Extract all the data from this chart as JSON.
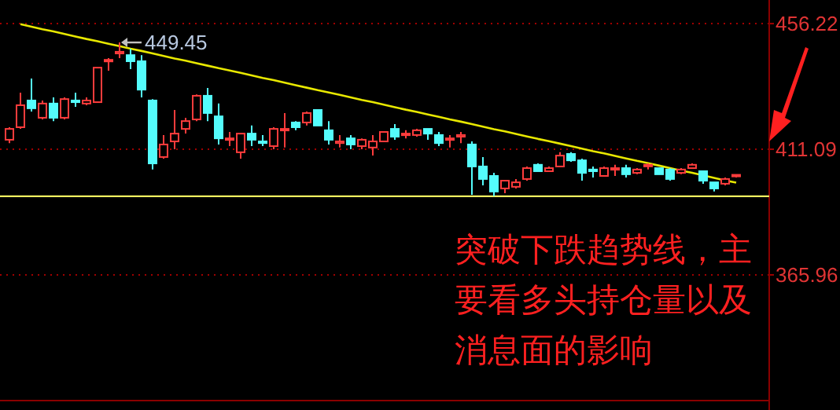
{
  "chart_data": {
    "type": "candlestick",
    "categories": [
      null,
      null,
      null,
      null,
      null,
      null,
      null,
      null,
      null,
      null,
      null,
      null,
      null,
      null,
      null,
      null,
      null,
      null,
      null,
      null,
      null,
      null,
      null,
      null,
      null,
      null,
      null,
      null,
      null,
      null,
      null,
      null,
      null,
      null,
      null,
      null,
      null,
      null,
      null,
      null,
      null,
      null,
      null,
      null,
      null,
      null,
      null,
      null,
      null,
      null,
      null,
      null,
      null,
      null,
      null,
      null,
      null,
      null,
      null,
      null,
      null,
      null,
      null,
      null,
      null,
      null,
      null
    ],
    "ohlc": [
      [
        414.5,
        419.0,
        413.3,
        418.4
      ],
      [
        419.0,
        431.4,
        418.4,
        426.9
      ],
      [
        428.6,
        436.5,
        424.6,
        425.8
      ],
      [
        422.4,
        428.6,
        421.8,
        427.5
      ],
      [
        427.5,
        429.7,
        421.2,
        422.4
      ],
      [
        422.4,
        429.7,
        421.8,
        429.1
      ],
      [
        428.6,
        431.4,
        426.3,
        428.0
      ],
      [
        427.5,
        429.7,
        426.9,
        428.6
      ],
      [
        428.0,
        440.4,
        428.0,
        440.4
      ],
      [
        442.7,
        443.8,
        439.3,
        443.2
      ],
      [
        445.5,
        449.45,
        443.8,
        446.1
      ],
      [
        444.9,
        447.2,
        439.9,
        442.7
      ],
      [
        442.7,
        444.9,
        429.7,
        432.5
      ],
      [
        428.6,
        429.1,
        403.8,
        406.0
      ],
      [
        408.3,
        416.2,
        407.7,
        412.8
      ],
      [
        413.9,
        425.2,
        411.1,
        416.7
      ],
      [
        418.4,
        422.4,
        416.7,
        421.2
      ],
      [
        421.8,
        430.8,
        421.2,
        430.3
      ],
      [
        430.3,
        433.1,
        421.2,
        424.1
      ],
      [
        422.9,
        427.5,
        412.8,
        415.0
      ],
      [
        414.5,
        417.3,
        412.2,
        415.0
      ],
      [
        410.0,
        416.7,
        407.7,
        416.7
      ],
      [
        416.7,
        419.6,
        412.2,
        414.5
      ],
      [
        413.9,
        416.2,
        412.2,
        413.3
      ],
      [
        412.2,
        419.0,
        411.1,
        418.4
      ],
      [
        417.9,
        424.1,
        411.7,
        418.4
      ],
      [
        420.7,
        421.2,
        417.9,
        419.0
      ],
      [
        420.7,
        424.6,
        419.6,
        424.1
      ],
      [
        425.2,
        425.2,
        419.6,
        419.6
      ],
      [
        417.9,
        421.2,
        412.8,
        414.5
      ],
      [
        413.3,
        416.2,
        411.7,
        413.9
      ],
      [
        415.0,
        416.2,
        411.1,
        412.8
      ],
      [
        412.2,
        415.0,
        411.1,
        414.5
      ],
      [
        411.7,
        416.2,
        408.8,
        413.9
      ],
      [
        413.9,
        417.3,
        413.9,
        417.3
      ],
      [
        418.4,
        420.1,
        414.5,
        415.6
      ],
      [
        416.2,
        417.9,
        415.0,
        416.7
      ],
      [
        416.2,
        418.4,
        415.6,
        417.9
      ],
      [
        418.4,
        418.4,
        414.5,
        416.7
      ],
      [
        416.2,
        417.3,
        412.2,
        413.3
      ],
      [
        414.5,
        416.2,
        411.7,
        415.0
      ],
      [
        415.6,
        417.3,
        413.3,
        416.2
      ],
      [
        412.8,
        413.9,
        394.7,
        404.9
      ],
      [
        404.9,
        408.3,
        398.1,
        400.4
      ],
      [
        401.5,
        402.6,
        394.2,
        395.9
      ],
      [
        397.0,
        399.8,
        395.3,
        399.8
      ],
      [
        397.6,
        400.4,
        397.0,
        399.2
      ],
      [
        400.4,
        404.9,
        399.8,
        404.3
      ],
      [
        405.5,
        406.0,
        403.2,
        403.2
      ],
      [
        403.2,
        404.9,
        403.2,
        404.3
      ],
      [
        404.9,
        410.0,
        404.9,
        408.8
      ],
      [
        409.4,
        410.0,
        406.6,
        407.1
      ],
      [
        407.1,
        407.7,
        399.8,
        402.6
      ],
      [
        403.8,
        404.9,
        400.9,
        403.2
      ],
      [
        401.5,
        404.9,
        401.5,
        404.3
      ],
      [
        403.8,
        405.5,
        401.5,
        404.3
      ],
      [
        404.3,
        405.5,
        400.9,
        402.1
      ],
      [
        402.6,
        404.3,
        402.1,
        403.8
      ],
      [
        405.0,
        406.0,
        403.8,
        405.5
      ],
      [
        404.3,
        404.3,
        402.1,
        402.1
      ],
      [
        403.8,
        404.3,
        399.8,
        400.4
      ],
      [
        402.6,
        404.3,
        402.1,
        403.8
      ],
      [
        404.3,
        406.0,
        404.3,
        405.5
      ],
      [
        403.2,
        403.2,
        398.7,
        399.8
      ],
      [
        399.2,
        399.2,
        395.9,
        397.0
      ],
      [
        398.7,
        400.9,
        398.1,
        400.4
      ],
      [
        401.5,
        401.9,
        400.9,
        401.9
      ]
    ],
    "colors": [
      "#ff3c3c",
      "#ff3c3c",
      "#54fcfc",
      "#ff3c3c",
      "#54fcfc",
      "#ff3c3c",
      "#54fcfc",
      "#ff3c3c",
      "#ff3c3c",
      "#ff3c3c",
      "#ff3c3c",
      "#54fcfc",
      "#54fcfc",
      "#54fcfc",
      "#ff3c3c",
      "#ff3c3c",
      "#ff3c3c",
      "#ff3c3c",
      "#54fcfc",
      "#54fcfc",
      "#ff3c3c",
      "#ff3c3c",
      "#54fcfc",
      "#54fcfc",
      "#ff3c3c",
      "#ff3c3c",
      "#54fcfc",
      "#ff3c3c",
      "#54fcfc",
      "#54fcfc",
      "#ff3c3c",
      "#54fcfc",
      "#ff3c3c",
      "#ff3c3c",
      "#ff3c3c",
      "#54fcfc",
      "#ff3c3c",
      "#ff3c3c",
      "#54fcfc",
      "#54fcfc",
      "#ff3c3c",
      "#ff3c3c",
      "#54fcfc",
      "#54fcfc",
      "#54fcfc",
      "#ff3c3c",
      "#ff3c3c",
      "#ff3c3c",
      "#54fcfc",
      "#ff3c3c",
      "#ff3c3c",
      "#54fcfc",
      "#54fcfc",
      "#54fcfc",
      "#ff3c3c",
      "#ff3c3c",
      "#54fcfc",
      "#ff3c3c",
      "#ff3c3c",
      "#54fcfc",
      "#54fcfc",
      "#ff3c3c",
      "#ff3c3c",
      "#54fcfc",
      "#54fcfc",
      "#ff3c3c",
      "#ff3c3c"
    ],
    "series": [
      {
        "type": "line",
        "color": "#e8e800",
        "values": [
          null,
          456.0,
          455.1,
          454.2,
          453.4,
          452.5,
          451.6,
          450.7,
          449.9,
          449.0,
          448.1,
          447.2,
          446.4,
          445.5,
          444.6,
          443.7,
          442.9,
          442.0,
          441.1,
          440.2,
          439.4,
          438.5,
          437.6,
          436.7,
          435.9,
          435.0,
          434.1,
          433.2,
          432.3,
          431.5,
          430.6,
          429.7,
          428.8,
          428.0,
          427.1,
          426.2,
          425.3,
          424.5,
          423.6,
          422.7,
          421.8,
          421.0,
          420.1,
          419.2,
          418.3,
          417.5,
          416.6,
          415.7,
          414.8,
          414.0,
          413.1,
          412.2,
          411.3,
          410.4,
          409.6,
          408.7,
          407.8,
          406.9,
          406.1,
          405.2,
          404.3,
          403.4,
          402.6,
          401.7,
          400.8,
          399.9,
          399.1
        ]
      }
    ],
    "ylim": [
      320.8,
      464.7
    ],
    "yticks": [
      456.22,
      411.09,
      365.96
    ],
    "grid": "y",
    "tick_labels": "y",
    "ref_lines": [
      {
        "axis": "y",
        "value": 394.2,
        "color": "#f0f060"
      }
    ],
    "annotations": [
      "449.45",
      "突破下跌趋势线，主要看多头持仓量以及消息面的影响"
    ]
  }
}
